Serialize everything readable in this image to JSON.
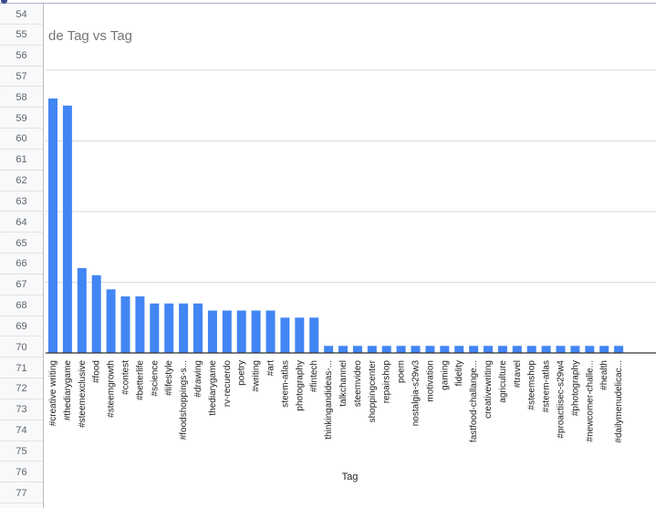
{
  "rows": [
    "54",
    "55",
    "56",
    "57",
    "58",
    "59",
    "60",
    "61",
    "62",
    "63",
    "64",
    "65",
    "66",
    "67",
    "68",
    "69",
    "70",
    "71",
    "72",
    "73",
    "74",
    "75",
    "76",
    "77"
  ],
  "colors": {
    "bar": "#4285f4",
    "grid": "#d9d9d9",
    "axis": "#333333",
    "title": "#757575"
  },
  "chart_data": {
    "type": "bar",
    "title": "de Tag vs Tag",
    "xlabel": "Tag",
    "ylabel": "",
    "ylim": [
      0,
      40
    ],
    "grid": true,
    "legend": "none",
    "categories": [
      "#creative writing",
      "#thediarygame",
      "#steemexclusive",
      "#food",
      "#steemgrowth",
      "#contest",
      "#betterlife",
      "#science",
      "#lifestyle",
      "#foodshoppings-s...",
      "#drawing",
      "thediarygame",
      "rv-recuerdo",
      "poetry",
      "#writing",
      "#art",
      "steem-atlas",
      "photography",
      "#fintech",
      "thinkingandideas-...",
      "talkchannel",
      "steemvideo",
      "shoppingcenter",
      "repairshop",
      "poem",
      "nostalgia-s29w3",
      "motivation",
      "gaming",
      "fidelity",
      "fastfood-challange...",
      "creativewriting",
      "agriculture",
      "#travel",
      "#steemshop",
      "#steem-atlas",
      "#proactiisec-s29w4",
      "#photography",
      "#newcomer-challe...",
      "#health",
      "#dailymenudelicac..."
    ],
    "values": [
      36,
      35,
      12,
      11,
      9,
      8,
      8,
      7,
      7,
      7,
      7,
      6,
      6,
      6,
      6,
      6,
      5,
      5,
      5,
      1,
      1,
      1,
      1,
      1,
      1,
      1,
      1,
      1,
      1,
      1,
      1,
      1,
      1,
      1,
      1,
      1,
      1,
      1,
      1,
      1
    ]
  }
}
